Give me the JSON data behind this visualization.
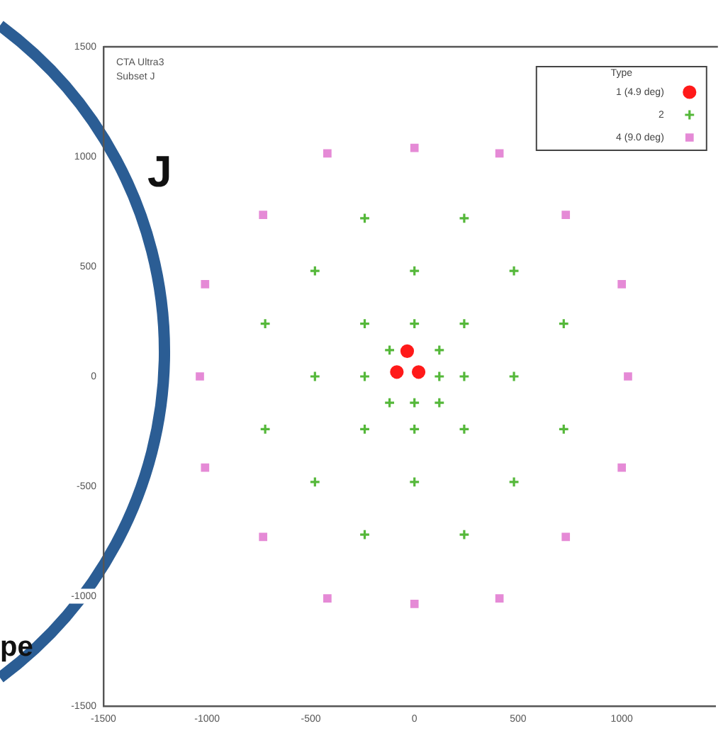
{
  "chart_data": {
    "type": "scatter",
    "legend_title": "Type",
    "legend": "top right",
    "grid": false,
    "annotations": [
      "CTA Ultra3",
      "Subset J",
      "J",
      "pe"
    ],
    "xlim": [
      -1500,
      1450
    ],
    "xticks": [
      -1500,
      -1000,
      -500,
      0,
      500,
      1000
    ],
    "ylim": [
      -1500,
      1500
    ],
    "yticks": [
      -1500,
      -1000,
      -500,
      0,
      500,
      1000,
      1500
    ],
    "series": [
      {
        "name": "1 (4.9 deg)",
        "color": "#ff1a1a",
        "marker": "circle",
        "x": [
          -85,
          -35,
          20
        ],
        "values": [
          20,
          115,
          20
        ]
      },
      {
        "name": "2",
        "color": "#55b83a",
        "marker": "cross",
        "x": [
          -240,
          240,
          -480,
          0,
          480,
          -720,
          -240,
          0,
          240,
          720,
          -120,
          120,
          -480,
          -240,
          120,
          240,
          480,
          -120,
          0,
          120,
          -720,
          -240,
          0,
          240,
          720,
          -480,
          0,
          480,
          -240,
          240
        ],
        "values": [
          720,
          720,
          480,
          480,
          480,
          240,
          240,
          240,
          240,
          240,
          120,
          120,
          0,
          0,
          0,
          0,
          0,
          -120,
          -120,
          -120,
          -240,
          -240,
          -240,
          -240,
          -240,
          -480,
          -480,
          -480,
          -720,
          -720
        ]
      },
      {
        "name": "4 (9.0 deg)",
        "color": "#e58ad6",
        "marker": "square",
        "x": [
          -420,
          0,
          410,
          -730,
          730,
          -1010,
          1000,
          -1035,
          1030,
          -1010,
          1000,
          -730,
          730,
          -420,
          0,
          410
        ],
        "values": [
          1015,
          1040,
          1015,
          735,
          735,
          420,
          420,
          0,
          0,
          -415,
          -415,
          -730,
          -730,
          -1010,
          -1035,
          -1010
        ]
      }
    ]
  }
}
